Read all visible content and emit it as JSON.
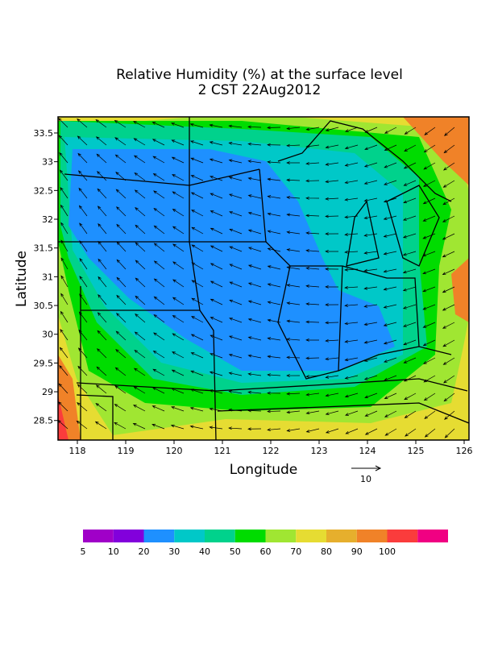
{
  "chart_data": {
    "type": "map",
    "title": "Relative Humidity (%) at the surface level",
    "subtitle": "2 CST 22Aug2012",
    "x_label": "Longitude",
    "y_label": "Latitude",
    "xlim": [
      117.6,
      126.1
    ],
    "xticks": [
      118,
      119,
      120,
      121,
      122,
      123,
      124,
      125,
      126
    ],
    "ylim": [
      28.16,
      33.78
    ],
    "yticks": [
      28.5,
      29,
      29.5,
      30,
      30.5,
      31,
      31.5,
      32,
      32.5,
      33,
      33.5
    ],
    "reference_vector": 10,
    "colorbar": {
      "levels": [
        5,
        10,
        20,
        30,
        40,
        50,
        60,
        70,
        80,
        90,
        100
      ],
      "colors": [
        "#a000c8",
        "#8200dc",
        "#1e90ff",
        "#00c8c8",
        "#00d28c",
        "#00dc00",
        "#a0e632",
        "#e6dc32",
        "#e6af2d",
        "#f08228",
        "#fa3c3c",
        "#f00082"
      ]
    }
  }
}
